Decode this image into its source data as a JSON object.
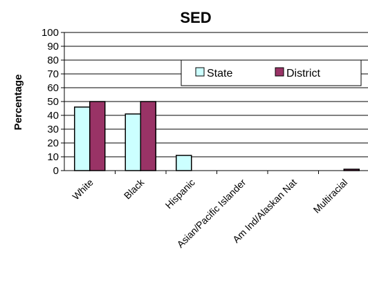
{
  "chart_data": {
    "type": "bar",
    "title": "SED",
    "ylabel": "Percentage",
    "xlabel": "",
    "ylim": [
      0,
      100
    ],
    "yticks": [
      0,
      10,
      20,
      30,
      40,
      50,
      60,
      70,
      80,
      90,
      100
    ],
    "grid": true,
    "legend_position": "top-right",
    "categories": [
      "White",
      "Black",
      "Hispanic",
      "Asian/Pacific Islander",
      "Am Ind/Alaskan Nat",
      "Multiracial"
    ],
    "series": [
      {
        "name": "State",
        "color": "#ccffff",
        "values": [
          46,
          41,
          11,
          0,
          0,
          0
        ]
      },
      {
        "name": "District",
        "color": "#993366",
        "values": [
          50,
          50,
          0,
          0,
          0,
          1
        ]
      }
    ]
  }
}
